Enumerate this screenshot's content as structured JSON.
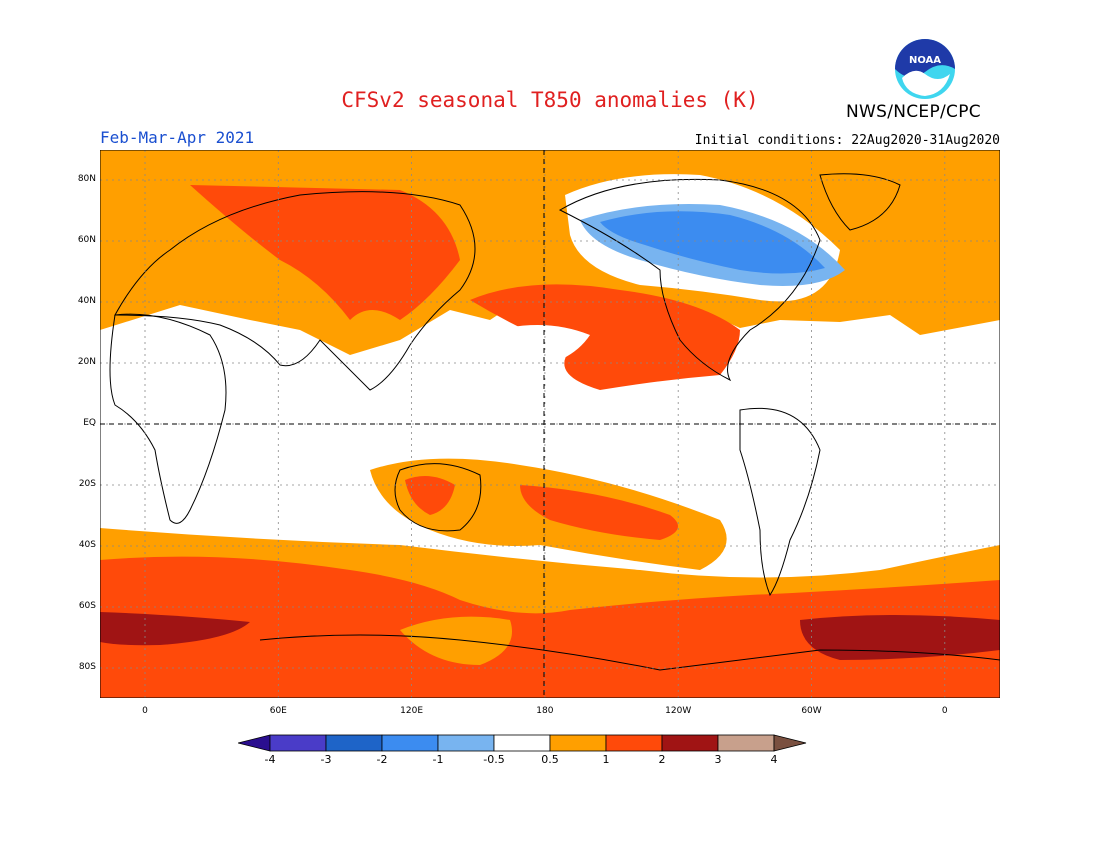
{
  "header": {
    "title": "CFSv2 seasonal T850 anomalies (K)",
    "org": "NWS/NCEP/CPC",
    "season": "Feb-Mar-Apr 2021",
    "initial_conditions": "Initial conditions: 22Aug2020-31Aug2020",
    "logo_text": "NOAA"
  },
  "axes": {
    "lat_labels": [
      "80N",
      "60N",
      "40N",
      "20N",
      "EQ",
      "20S",
      "40S",
      "60S",
      "80S"
    ],
    "lon_labels": [
      "0",
      "60E",
      "120E",
      "180",
      "120W",
      "60W",
      "0"
    ]
  },
  "colorbar": {
    "labels": [
      "-4",
      "-3",
      "-2",
      "-1",
      "-0.5",
      "0.5",
      "1",
      "2",
      "3",
      "4"
    ],
    "colors": [
      "#2a0e8f",
      "#4a3cc8",
      "#1e64c8",
      "#3c8cf0",
      "#78b4f0",
      "#ffffff",
      "#ff9f00",
      "#ff4a0a",
      "#a01414",
      "#c8a08c",
      "#7a5040"
    ]
  },
  "chart_data": {
    "type": "heatmap",
    "title": "CFSv2 seasonal T850 anomalies (K)",
    "variable": "T850 anomaly",
    "units": "K",
    "period": "Feb-Mar-Apr 2021",
    "initial_conditions": "22Aug2020-31Aug2020",
    "contour_levels": [
      -4,
      -3,
      -2,
      -1,
      -0.5,
      0.5,
      1,
      2,
      3,
      4
    ],
    "lat_range": [
      -90,
      90
    ],
    "lon_range": [
      -20,
      380
    ],
    "grid": true,
    "highlights": [
      "Cold anomaly (-1 to -2 K) over northern Canada / Hudson Bay",
      "Warm anomaly (2-3 K) in Southern Ocean near Antarctica",
      "Warm anomaly (1-2 K) over central Asia and north Pacific"
    ]
  }
}
